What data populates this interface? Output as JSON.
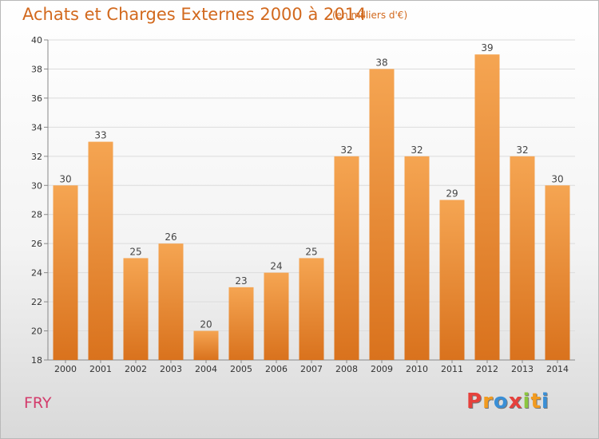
{
  "header": {
    "title": "Achats et Charges Externes 2000 à 2014",
    "unit": "(en milliers d'€)"
  },
  "footer": {
    "town": "FRY",
    "logo": "Proxiti"
  },
  "colors": {
    "bar_top": "#f5a552",
    "bar_bottom": "#d9721d",
    "title": "#d2691e",
    "town": "#d33b6b",
    "grid": "#dcdcdc"
  },
  "chart_data": {
    "type": "bar",
    "title": "Achats et Charges Externes 2000 à 2014",
    "subtitle": "(en milliers d'€)",
    "xlabel": "",
    "ylabel": "",
    "categories": [
      "2000",
      "2001",
      "2002",
      "2003",
      "2004",
      "2005",
      "2006",
      "2007",
      "2008",
      "2009",
      "2010",
      "2011",
      "2012",
      "2013",
      "2014"
    ],
    "values": [
      30,
      33,
      25,
      26,
      20,
      23,
      24,
      25,
      32,
      38,
      32,
      29,
      39,
      32,
      30
    ],
    "ylim": [
      18,
      40
    ],
    "yticks": [
      18,
      20,
      22,
      24,
      26,
      28,
      30,
      32,
      34,
      36,
      38,
      40
    ],
    "grid": true,
    "legend": "none"
  }
}
